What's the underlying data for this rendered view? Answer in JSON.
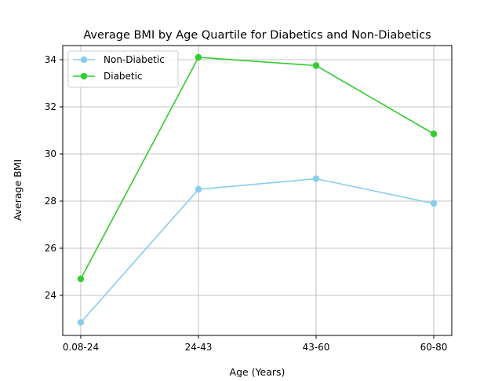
{
  "chart_data": {
    "type": "line",
    "title": "Average BMI by Age Quartile for Diabetics and Non-Diabetics",
    "xlabel": "Age (Years)",
    "ylabel": "Average BMI",
    "categories": [
      "0.08-24",
      "24-43",
      "43-60",
      "60-80"
    ],
    "yticks": [
      24,
      26,
      28,
      30,
      32,
      34
    ],
    "ylim": [
      22.3,
      34.6
    ],
    "grid": true,
    "legend_position": "top-left",
    "series": [
      {
        "name": "Non-Diabetic",
        "color": "#87ceeb",
        "values": [
          22.85,
          28.5,
          28.95,
          27.9
        ]
      },
      {
        "name": "Diabetic",
        "color": "#32cd32",
        "values": [
          24.7,
          34.1,
          33.75,
          30.85
        ]
      }
    ]
  }
}
